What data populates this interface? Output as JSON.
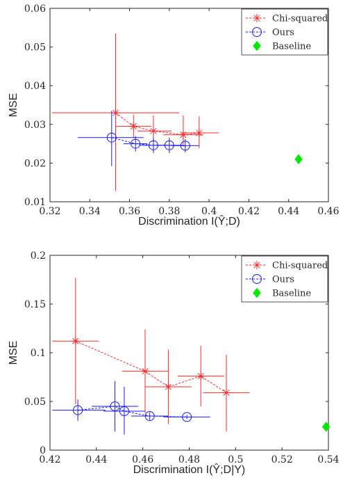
{
  "chart_data": [
    {
      "type": "scatter",
      "xlabel": "Discrimination I(Ŷ;D)",
      "ylabel": "MSE",
      "xlim": [
        0.32,
        0.46
      ],
      "ylim": [
        0.01,
        0.06
      ],
      "xticks": [
        "0.32",
        "0.34",
        "0.36",
        "0.38",
        "0.4",
        "0.42",
        "0.44",
        "0.46"
      ],
      "yticks": [
        "0.01",
        "0.02",
        "0.03",
        "0.04",
        "0.05",
        "0.06"
      ],
      "legend_position": "top-right",
      "series": [
        {
          "name": "Chi-squared",
          "color": "#ff2a2a",
          "marker": "asterisk",
          "connected": true,
          "points": [
            {
              "x": 0.353,
              "y": 0.033,
              "xerr": [
                0.321,
                0.385
              ],
              "yerr": [
                0.0128,
                0.0535
              ]
            },
            {
              "x": 0.362,
              "y": 0.0295,
              "xerr": [
                0.353,
                0.371
              ],
              "yerr": [
                0.0265,
                0.0325
              ]
            },
            {
              "x": 0.372,
              "y": 0.0283,
              "xerr": [
                0.364,
                0.381
              ],
              "yerr": [
                0.0253,
                0.0323
              ]
            },
            {
              "x": 0.387,
              "y": 0.0273,
              "xerr": [
                0.377,
                0.397
              ],
              "yerr": [
                0.0243,
                0.0323
              ]
            },
            {
              "x": 0.395,
              "y": 0.0278,
              "xerr": [
                0.386,
                0.405
              ],
              "yerr": [
                0.0238,
                0.0321
              ]
            }
          ]
        },
        {
          "name": "Ours",
          "color": "#1a1aff",
          "marker": "circle",
          "connected": true,
          "points": [
            {
              "x": 0.351,
              "y": 0.0266,
              "xerr": [
                0.334,
                0.367
              ],
              "yerr": [
                0.0192,
                0.0335
              ]
            },
            {
              "x": 0.363,
              "y": 0.025,
              "xerr": [
                0.357,
                0.369
              ],
              "yerr": [
                0.023,
                0.027
              ]
            },
            {
              "x": 0.372,
              "y": 0.0246,
              "xerr": [
                0.365,
                0.379
              ],
              "yerr": [
                0.0226,
                0.0266
              ]
            },
            {
              "x": 0.38,
              "y": 0.0246,
              "xerr": [
                0.373,
                0.387
              ],
              "yerr": [
                0.0226,
                0.0266
              ]
            },
            {
              "x": 0.388,
              "y": 0.0245,
              "xerr": [
                0.381,
                0.395
              ],
              "yerr": [
                0.0228,
                0.0262
              ]
            }
          ]
        },
        {
          "name": "Baseline",
          "color": "#00e600",
          "marker": "diamond",
          "connected": false,
          "points": [
            {
              "x": 0.445,
              "y": 0.021
            }
          ]
        }
      ]
    },
    {
      "type": "scatter",
      "xlabel": "Discrimination I(Ŷ;D|Y)",
      "ylabel": "MSE",
      "xlim": [
        0.42,
        0.54
      ],
      "ylim": [
        0,
        0.2
      ],
      "xticks": [
        "0.42",
        "0.44",
        "0.46",
        "0.48",
        "0.5",
        "0.52",
        "0.54"
      ],
      "yticks": [
        "0",
        "0.05",
        "0.1",
        "0.15",
        "0.2"
      ],
      "legend_position": "top-right",
      "series": [
        {
          "name": "Chi-squared",
          "color": "#ff2a2a",
          "marker": "asterisk",
          "connected": true,
          "points": [
            {
              "x": 0.431,
              "y": 0.112,
              "xerr": [
                0.421,
                0.441
              ],
              "yerr": [
                0.047,
                0.177
              ]
            },
            {
              "x": 0.461,
              "y": 0.081,
              "xerr": [
                0.451,
                0.471
              ],
              "yerr": [
                0.038,
                0.124
              ]
            },
            {
              "x": 0.471,
              "y": 0.065,
              "xerr": [
                0.461,
                0.481
              ],
              "yerr": [
                0.027,
                0.103
              ]
            },
            {
              "x": 0.485,
              "y": 0.076,
              "xerr": [
                0.475,
                0.495
              ],
              "yerr": [
                0.045,
                0.107
              ]
            },
            {
              "x": 0.496,
              "y": 0.059,
              "xerr": [
                0.486,
                0.506
              ],
              "yerr": [
                0.019,
                0.098
              ]
            }
          ]
        },
        {
          "name": "Ours",
          "color": "#1a1aff",
          "marker": "circle",
          "connected": true,
          "points": [
            {
              "x": 0.432,
              "y": 0.041,
              "xerr": [
                0.421,
                0.444
              ],
              "yerr": [
                0.03,
                0.052
              ]
            },
            {
              "x": 0.448,
              "y": 0.045,
              "xerr": [
                0.438,
                0.458
              ],
              "yerr": [
                0.019,
                0.071
              ]
            },
            {
              "x": 0.452,
              "y": 0.04,
              "xerr": [
                0.443,
                0.461
              ],
              "yerr": [
                0.016,
                0.065
              ]
            },
            {
              "x": 0.463,
              "y": 0.035,
              "xerr": [
                0.455,
                0.471
              ],
              "yerr": [
                0.031,
                0.039
              ]
            },
            {
              "x": 0.479,
              "y": 0.034,
              "xerr": [
                0.469,
                0.489
              ],
              "yerr": [
                0.032,
                0.036
              ]
            }
          ]
        },
        {
          "name": "Baseline",
          "color": "#00e600",
          "marker": "diamond",
          "connected": false,
          "points": [
            {
              "x": 0.539,
              "y": 0.024
            }
          ]
        }
      ]
    }
  ]
}
